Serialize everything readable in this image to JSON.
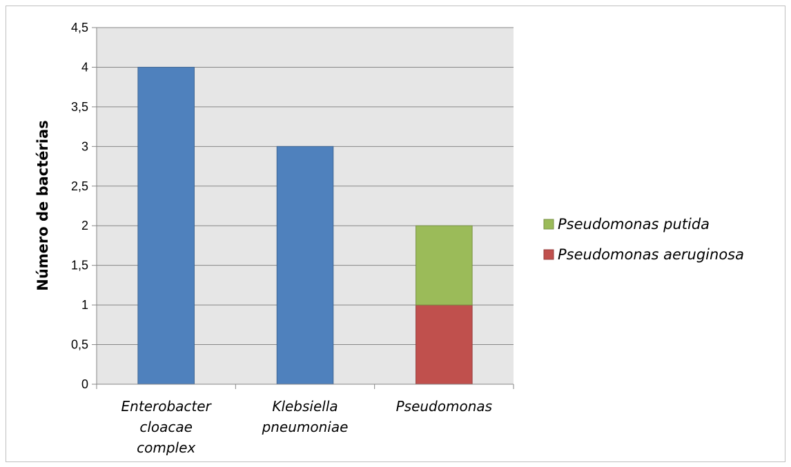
{
  "chart_data": {
    "type": "bar",
    "stacked": true,
    "categories": [
      [
        "Enterobacter",
        "cloacae",
        "complex"
      ],
      [
        "Klebsiella",
        "pneumoniae"
      ],
      [
        "Pseudomonas"
      ]
    ],
    "series": [
      {
        "name": "",
        "color": "#4f81bd",
        "values": [
          4,
          3,
          0
        ]
      },
      {
        "name": "Pseudomonas aeruginosa",
        "color": "#c0504d",
        "values": [
          0,
          0,
          1
        ]
      },
      {
        "name": "Pseudomonas putida",
        "color": "#9bbb59",
        "values": [
          0,
          0,
          1
        ]
      }
    ],
    "legend": {
      "placement": "right",
      "entries": [
        {
          "label": "Pseudomonas putida",
          "color": "#9bbb59"
        },
        {
          "label": "Pseudomonas aeruginosa",
          "color": "#c0504d"
        }
      ]
    },
    "ylabel": "Número de bactérias",
    "xlabel": "",
    "ylim": [
      0,
      4.5
    ],
    "yticks": [
      "0",
      "0,5",
      "1",
      "1,5",
      "2",
      "2,5",
      "3",
      "3,5",
      "4",
      "4,5"
    ],
    "grid": true,
    "plot_background": "#e6e6e6"
  }
}
